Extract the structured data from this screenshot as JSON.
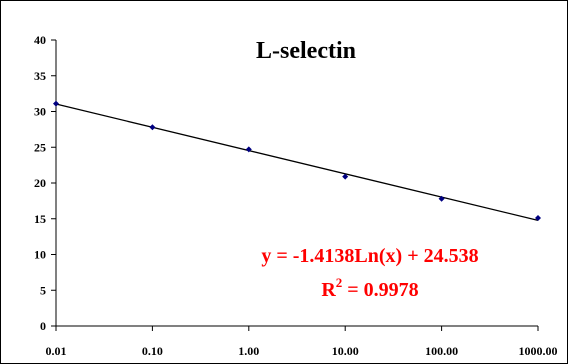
{
  "chart_data": {
    "type": "scatter",
    "title": "L-selectin",
    "xlabel": "",
    "ylabel": "",
    "x_scale": "log",
    "xlim": [
      0.01,
      1000
    ],
    "ylim": [
      0,
      40
    ],
    "x_tick_values": [
      0.01,
      0.1,
      1,
      10,
      100,
      1000
    ],
    "x_tick_labels": [
      "0.01",
      "0.10",
      "1.00",
      "10.00",
      "100.00",
      "1000.00"
    ],
    "y_ticks": [
      0,
      5,
      10,
      15,
      20,
      25,
      30,
      35,
      40
    ],
    "grid": false,
    "legend": "none",
    "series": [
      {
        "x": [
          0.01,
          0.1,
          1,
          10,
          100,
          1000
        ],
        "y": [
          31.1,
          27.8,
          24.7,
          20.9,
          17.8,
          15.1
        ],
        "color": "#000080"
      }
    ],
    "trendline": {
      "slope": -1.4138,
      "intercept": 24.538,
      "color": "#000000"
    },
    "annotations": {
      "equation": "y = -1.4138Ln(x) + 24.538",
      "r2_prefix": "R",
      "r2_sup": "2",
      "r2_suffix": " = 0.9978",
      "color": "#ff0000"
    }
  }
}
